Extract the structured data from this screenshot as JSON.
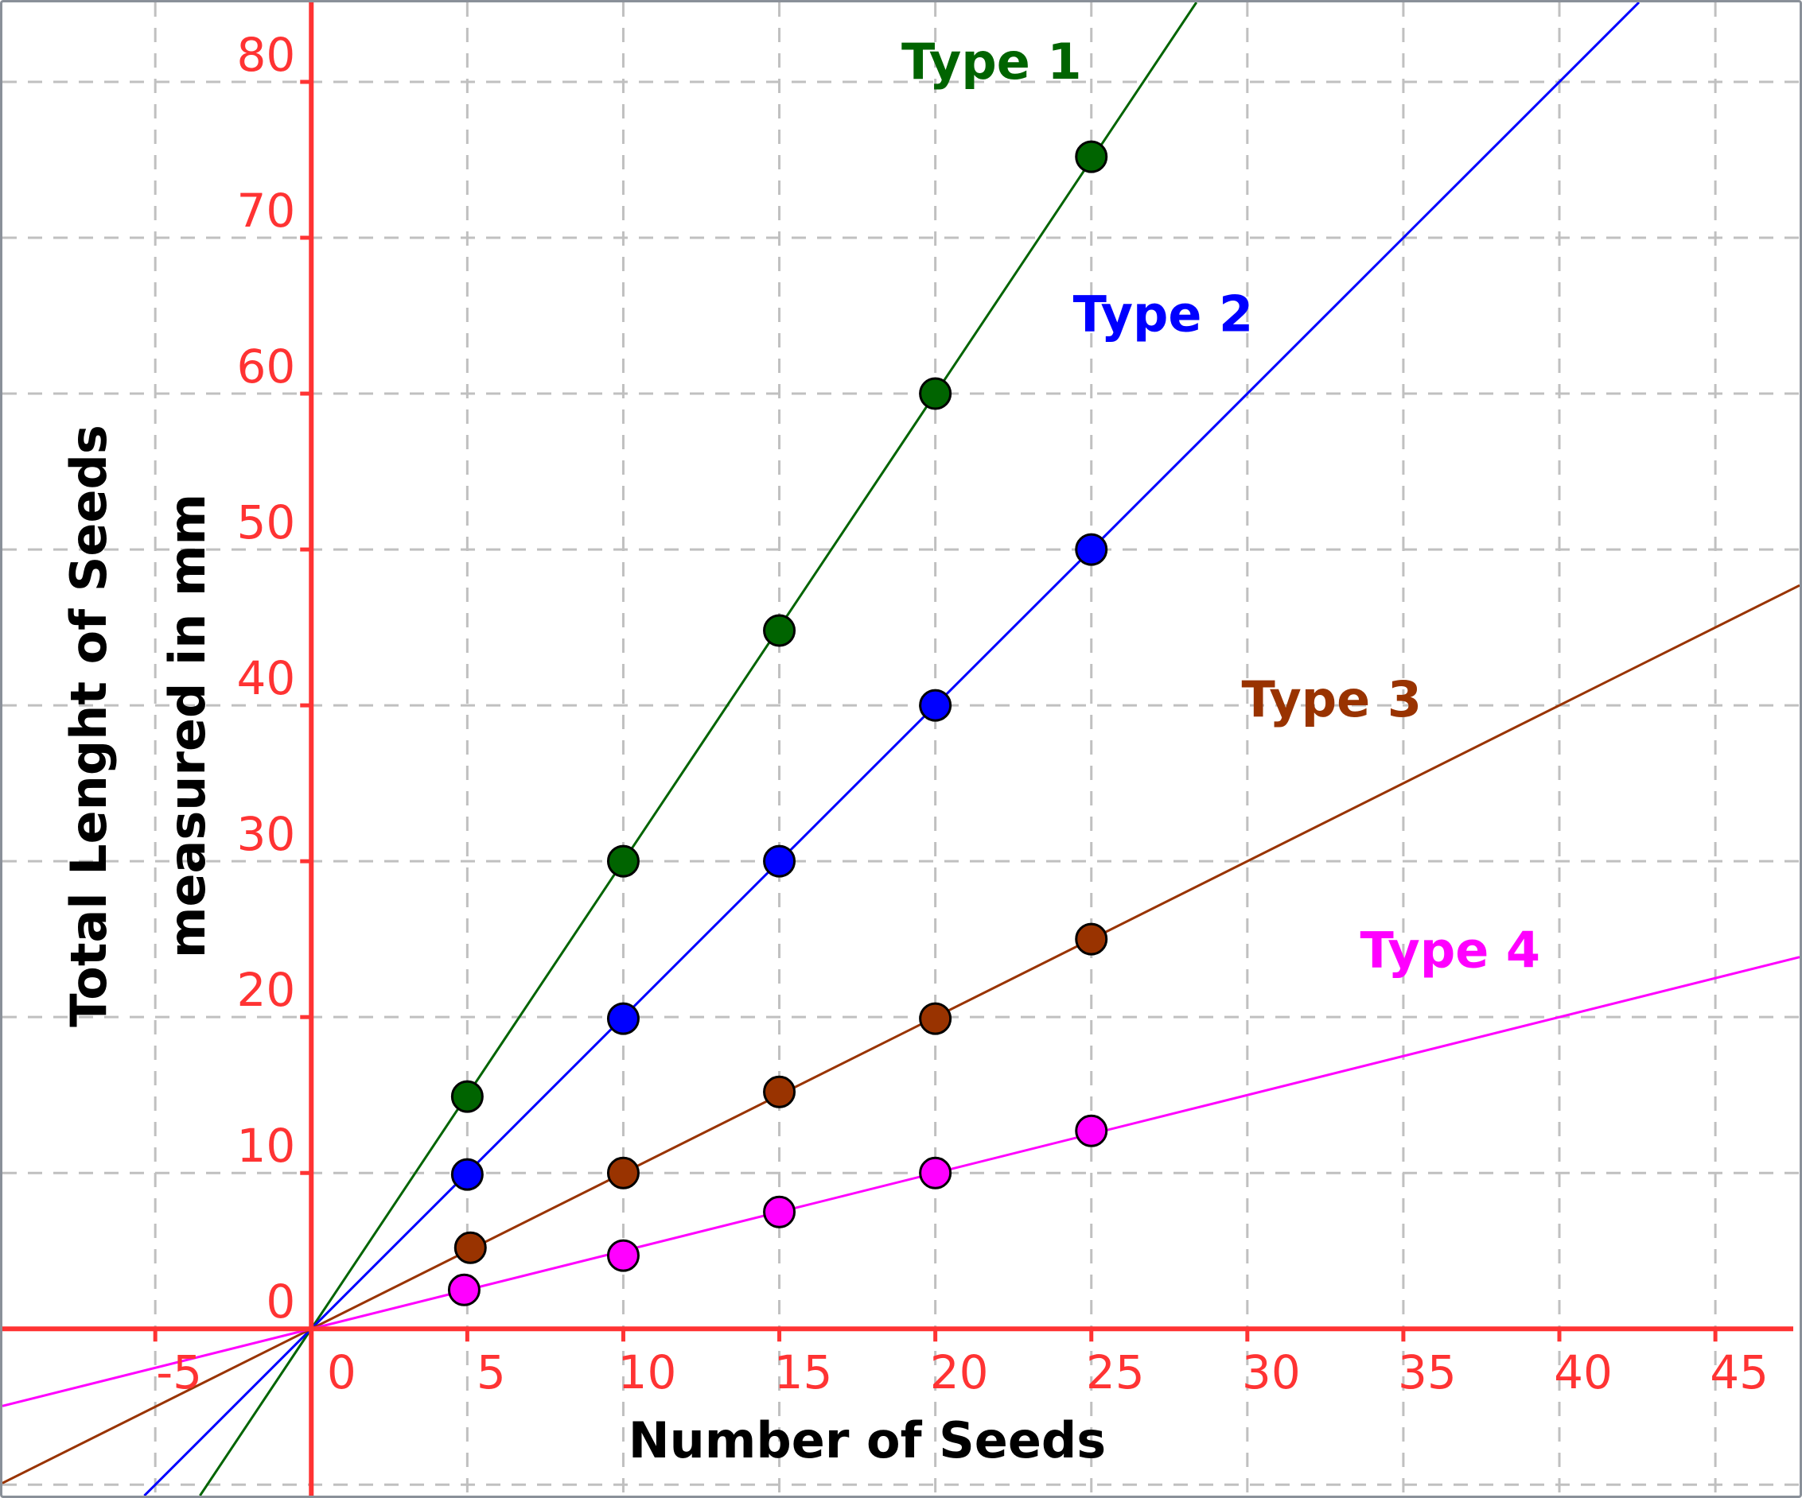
{
  "chart_data": {
    "type": "scatter",
    "xlabel": "Number of Seeds",
    "ylabel_lines": [
      "Total Lenght of Seeds",
      "measured in mm"
    ],
    "xlim": [
      -9.9,
      47.7
    ],
    "ylim": [
      -10.7,
      85.1
    ],
    "xticks": [
      -5,
      0,
      5,
      10,
      15,
      20,
      25,
      30,
      35,
      40,
      45
    ],
    "yticks": [
      0,
      10,
      20,
      30,
      40,
      50,
      60,
      70,
      80
    ],
    "grid": true,
    "axis_color": "#ff3333",
    "grid_color": "#c0c0c0",
    "series": [
      {
        "name": "Type 1",
        "color": "#006400",
        "slope": 3,
        "label_pos": [
          21.8,
          80.2
        ],
        "points": [
          [
            5,
            14.9
          ],
          [
            10,
            30
          ],
          [
            15,
            44.8
          ],
          [
            20,
            60
          ],
          [
            25,
            75.2
          ]
        ]
      },
      {
        "name": "Type 2",
        "color": "#0000ff",
        "slope": 2,
        "label_pos": [
          27.3,
          64
        ],
        "points": [
          [
            5,
            9.9
          ],
          [
            10,
            19.9
          ],
          [
            15,
            30
          ],
          [
            20,
            40
          ],
          [
            25,
            50
          ]
        ]
      },
      {
        "name": "Type 3",
        "color": "#993300",
        "slope": 1,
        "label_pos": [
          32.7,
          39.3
        ],
        "points": [
          [
            5.1,
            5.2
          ],
          [
            10,
            10
          ],
          [
            15,
            15.2
          ],
          [
            20,
            19.9
          ],
          [
            25,
            25
          ]
        ]
      },
      {
        "name": "Type 4",
        "color": "#ff00ff",
        "slope": 0.5,
        "label_pos": [
          36.5,
          23.2
        ],
        "points": [
          [
            4.9,
            2.5
          ],
          [
            10,
            4.7
          ],
          [
            15,
            7.5
          ],
          [
            20,
            10
          ],
          [
            25,
            12.7
          ]
        ]
      }
    ]
  }
}
